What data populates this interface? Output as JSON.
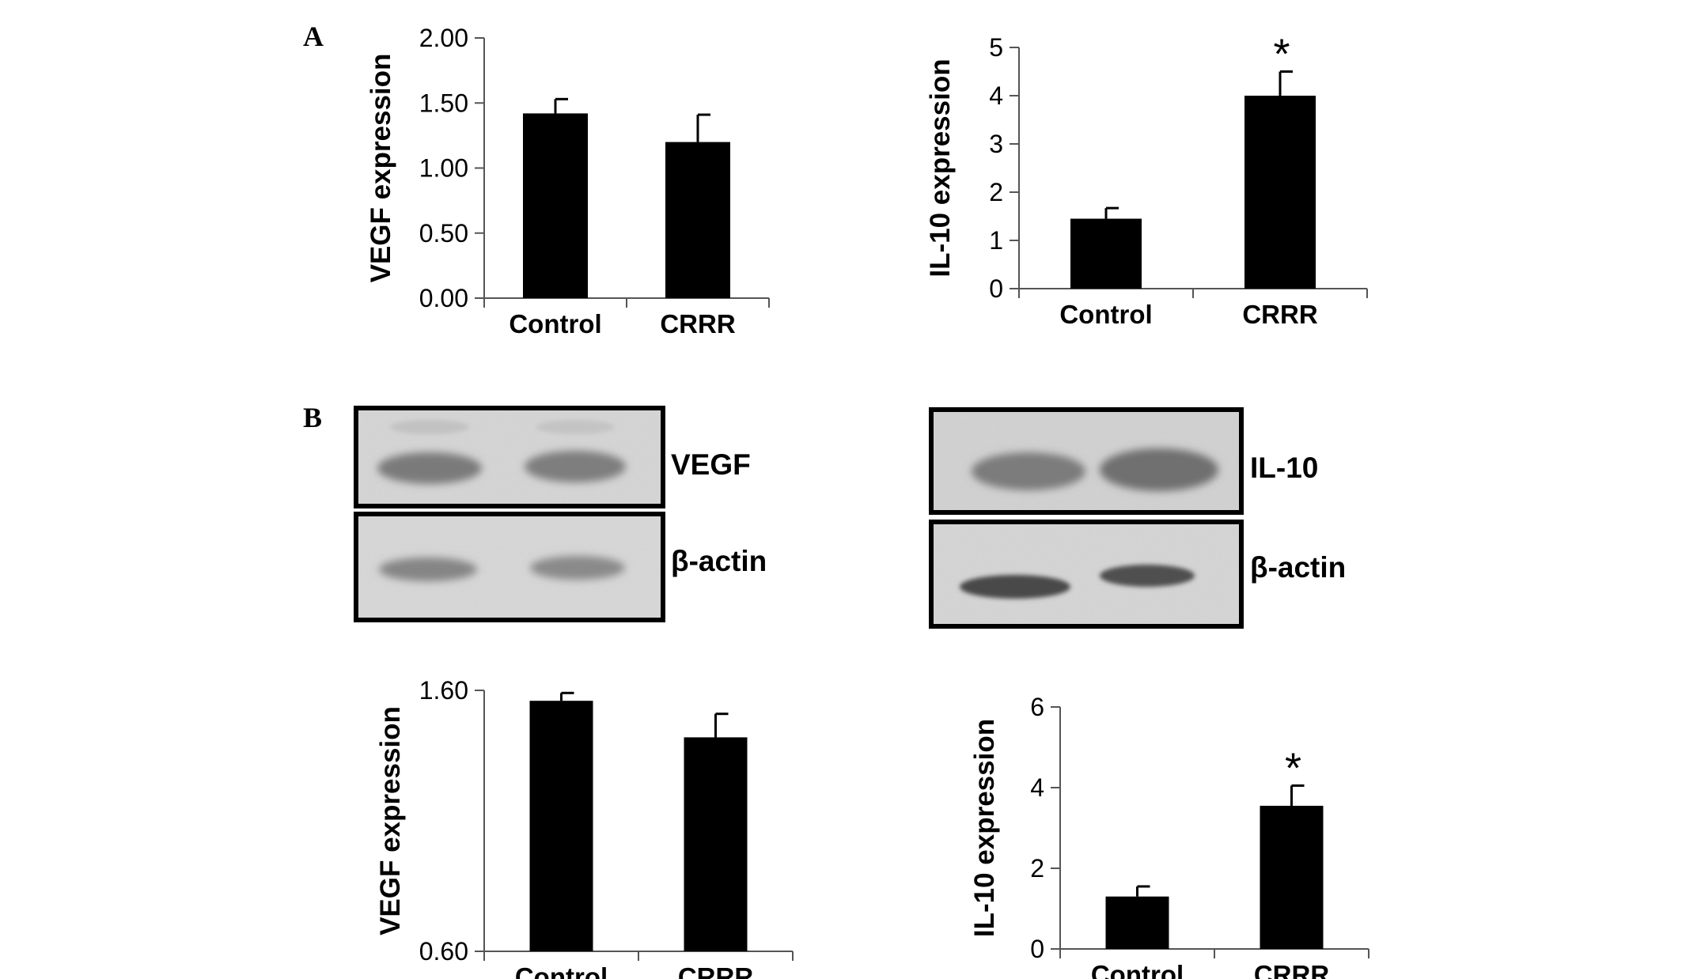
{
  "panels": {
    "A": "A",
    "B": "B"
  },
  "chart_data": [
    {
      "type": "bar",
      "panel": "A",
      "categories": [
        "Control",
        "CRRR"
      ],
      "values": [
        1.42,
        1.2
      ],
      "errors": [
        0.11,
        0.21
      ],
      "ylabel": "VEGF expression",
      "ylim": [
        0,
        2
      ],
      "yticks": [
        "0.00",
        "0.50",
        "1.00",
        "1.50",
        "2.00"
      ],
      "annotations": [
        "",
        ""
      ],
      "bar_color": "#000000"
    },
    {
      "type": "bar",
      "panel": "A",
      "categories": [
        "Control",
        "CRRR"
      ],
      "values": [
        1.45,
        4.0
      ],
      "errors": [
        0.22,
        0.5
      ],
      "ylabel": "IL-10 expression",
      "ylim": [
        0,
        5
      ],
      "yticks": [
        "0",
        "1",
        "2",
        "3",
        "4",
        "5"
      ],
      "annotations": [
        "",
        "*"
      ],
      "bar_color": "#000000"
    },
    {
      "type": "bar",
      "panel": "B",
      "categories": [
        "Control",
        "CRRR"
      ],
      "values": [
        1.56,
        1.42
      ],
      "errors": [
        0.03,
        0.09
      ],
      "ylabel": "VEGF expression",
      "ylim": [
        0.6,
        1.6
      ],
      "yticks": [
        "0.60",
        "1.60"
      ],
      "annotations": [
        "",
        ""
      ],
      "bar_color": "#000000"
    },
    {
      "type": "bar",
      "panel": "B",
      "categories": [
        "Control",
        "CRRR"
      ],
      "values": [
        1.3,
        3.55
      ],
      "errors": [
        0.25,
        0.5
      ],
      "ylabel": "IL-10 expression",
      "ylim": [
        0,
        6
      ],
      "yticks": [
        "0",
        "2",
        "4",
        "6"
      ],
      "annotations": [
        "",
        "*"
      ],
      "bar_color": "#000000"
    }
  ],
  "blots": [
    {
      "target_label": "VEGF",
      "control_label": "β-actin"
    },
    {
      "target_label": "IL-10",
      "control_label": "β-actin"
    }
  ]
}
